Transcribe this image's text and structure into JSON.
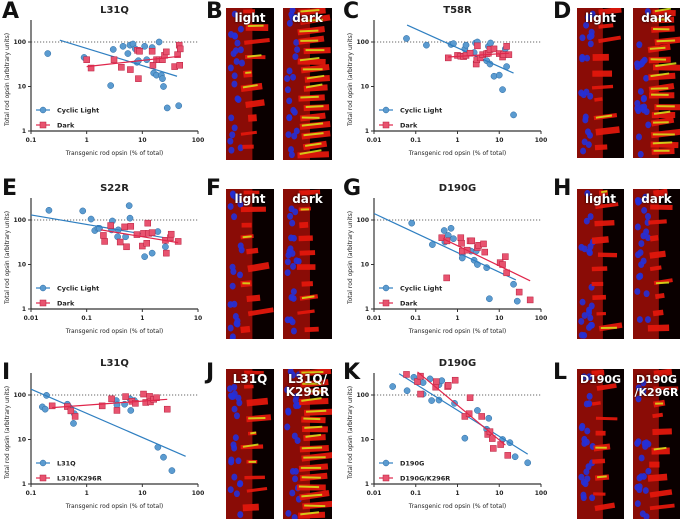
{
  "figure": {
    "panel_letters": [
      "A",
      "B",
      "C",
      "D",
      "E",
      "F",
      "G",
      "H",
      "I",
      "J",
      "K",
      "L"
    ],
    "colors": {
      "series1": "#2f7fc1",
      "series1_marker": "#5b9bd0",
      "series2": "#e0264b",
      "series2_marker": "#e8536f"
    },
    "micrographs": [
      {
        "panel": "B",
        "labels": [
          "light",
          "dark"
        ]
      },
      {
        "panel": "D",
        "labels": [
          "light",
          "dark"
        ]
      },
      {
        "panel": "F",
        "labels": [
          "light",
          "dark"
        ]
      },
      {
        "panel": "H",
        "labels": [
          "light",
          "dark"
        ]
      },
      {
        "panel": "J",
        "labels": [
          "L31Q",
          "L31Q/\nK296R"
        ]
      },
      {
        "panel": "L",
        "labels": [
          "D190G",
          "D190G\n/K296R"
        ]
      }
    ]
  },
  "chart_data": [
    {
      "panel": "A",
      "type": "scatter",
      "title": "L31Q",
      "xlabel": "Transgenic rod opsin (% of total)",
      "ylabel": "Total rod opsin (arbitrary units)",
      "xscale": "log",
      "yscale": "log",
      "xlim": [
        0.1,
        100
      ],
      "ylim": [
        1,
        300
      ],
      "xticks": [
        "0.1",
        "1",
        "10",
        "100"
      ],
      "yticks": [
        "1",
        "10",
        "100"
      ],
      "reference_line": 100,
      "legend": "bottom-left",
      "series": [
        {
          "name": "Cyclic Light",
          "marker": "circle",
          "x": [
            0.2,
            0.9,
            2.7,
            3,
            4.5,
            5.5,
            6,
            6.8,
            7.5,
            8,
            8.5,
            11,
            12,
            15,
            16,
            18,
            20,
            22,
            23,
            24,
            28,
            45
          ],
          "y": [
            55,
            45,
            10.5,
            68,
            80,
            55,
            85,
            90,
            70,
            35,
            38,
            80,
            40,
            75,
            20,
            18,
            100,
            18,
            15,
            10,
            3.3,
            3.7
          ],
          "fit": [
            [
              0.33,
              110
            ],
            [
              42,
              17
            ]
          ]
        },
        {
          "name": "Dark",
          "marker": "square",
          "x": [
            1,
            1.2,
            3.1,
            4.2,
            6.1,
            8.2,
            8.5,
            8.9,
            15,
            15.5,
            18,
            20,
            23,
            25,
            27,
            38,
            43,
            46,
            47,
            48
          ],
          "y": [
            40,
            26,
            40,
            27,
            24,
            65,
            15,
            62,
            62,
            30,
            40,
            40,
            40,
            50,
            60,
            28,
            52,
            85,
            30,
            70
          ],
          "fit": [
            [
              1,
              28
            ],
            [
              48,
              48
            ]
          ]
        }
      ]
    },
    {
      "panel": "C",
      "type": "scatter",
      "title": "T58R",
      "xlabel": "Transgenic rod opsin (% of total)",
      "ylabel": "Total rod opsin (arbitrary units)",
      "xscale": "log",
      "yscale": "log",
      "xlim": [
        0.01,
        100
      ],
      "ylim": [
        1,
        300
      ],
      "xticks": [
        "0.01",
        "0.1",
        "1",
        "10",
        "100"
      ],
      "yticks": [
        "1",
        "10",
        "100"
      ],
      "reference_line": 100,
      "legend": "bottom-left",
      "series": [
        {
          "name": "Cyclic Light",
          "marker": "circle",
          "x": [
            0.06,
            0.18,
            0.7,
            0.8,
            1.5,
            1.6,
            2.5,
            2.7,
            3,
            5,
            5.5,
            6,
            6.2,
            7.5,
            10,
            12,
            14,
            15,
            22
          ],
          "y": [
            120,
            85,
            88,
            92,
            70,
            85,
            58,
            95,
            100,
            38,
            80,
            32,
            95,
            17,
            18,
            8.5,
            70,
            28,
            2.3
          ],
          "fit": [
            [
              0.062,
              240
            ],
            [
              22,
              20
            ]
          ]
        },
        {
          "name": "Dark",
          "marker": "square",
          "x": [
            0.6,
            1,
            1.2,
            1.4,
            1.6,
            2,
            2.8,
            2.9,
            3,
            3.5,
            4,
            5,
            5.5,
            6,
            7.5,
            10,
            12,
            12.5,
            15,
            17
          ],
          "y": [
            44,
            50,
            48,
            47,
            50,
            56,
            32,
            40,
            82,
            44,
            52,
            55,
            56,
            68,
            70,
            55,
            46,
            52,
            80,
            52
          ],
          "fit": [
            [
              0.6,
              46
            ],
            [
              17,
              56
            ]
          ]
        }
      ]
    },
    {
      "panel": "E",
      "type": "scatter",
      "title": "S22R",
      "xlabel": "Transgenic rod opsin (% of total)",
      "ylabel": "Total rod opsin (arbitrary units)",
      "xscale": "log",
      "yscale": "log",
      "xlim": [
        0.01,
        10
      ],
      "ylim": [
        1,
        300
      ],
      "xticks": [
        "0.01",
        "0.1",
        "1",
        "10"
      ],
      "yticks": [
        "1",
        "10",
        "100"
      ],
      "reference_line": 100,
      "legend": "bottom-left",
      "series": [
        {
          "name": "Cyclic Light",
          "marker": "circle",
          "x": [
            0.021,
            0.085,
            0.12,
            0.14,
            0.16,
            0.17,
            0.28,
            0.29,
            0.36,
            0.37,
            0.5,
            0.58,
            0.6,
            1.1,
            1.5,
            1.9,
            2.6
          ],
          "y": [
            165,
            160,
            105,
            58,
            65,
            65,
            60,
            95,
            42,
            60,
            42,
            210,
            110,
            15,
            18,
            55,
            25
          ],
          "fit": [
            [
              0.01,
              130
            ],
            [
              2.5,
              40
            ]
          ]
        },
        {
          "name": "Dark",
          "marker": "square",
          "x": [
            0.2,
            0.21,
            0.27,
            0.4,
            0.48,
            0.52,
            0.62,
            0.8,
            1,
            1.05,
            1.2,
            1.25,
            1.3,
            1.5,
            2.6,
            2.7,
            3.2,
            3.3,
            4.4
          ],
          "y": [
            45,
            33,
            75,
            32,
            70,
            25,
            72,
            47,
            26,
            50,
            30,
            85,
            50,
            52,
            35,
            18,
            40,
            48,
            33
          ],
          "fit": [
            [
              0.18,
              60
            ],
            [
              4.4,
              31
            ]
          ]
        }
      ]
    },
    {
      "panel": "G",
      "type": "scatter",
      "title": "D190G",
      "xlabel": "Transgenic rod opsin (% of total)",
      "ylabel": "Total rod opsin (arbitrary units)",
      "xscale": "log",
      "yscale": "log",
      "xlim": [
        0.01,
        100
      ],
      "ylim": [
        1,
        300
      ],
      "xticks": [
        "0.01",
        "0.1",
        "1",
        "10",
        "100"
      ],
      "yticks": [
        "1",
        "10",
        "100"
      ],
      "reference_line": 100,
      "legend": "bottom-left",
      "series": [
        {
          "name": "Cyclic Light",
          "marker": "circle",
          "x": [
            0.08,
            0.25,
            0.48,
            0.5,
            0.6,
            0.7,
            0.8,
            1.3,
            1.3,
            2.1,
            2.5,
            2.8,
            3,
            5,
            5.8,
            22,
            27
          ],
          "y": [
            85,
            28,
            58,
            32,
            45,
            65,
            38,
            17,
            14,
            20,
            12.5,
            20,
            10,
            8.5,
            1.7,
            3.6,
            1.5
          ],
          "fit": [
            [
              0.01,
              140
            ],
            [
              25,
              4.5
            ]
          ]
        },
        {
          "name": "Dark",
          "marker": "square",
          "x": [
            0.42,
            0.55,
            0.56,
            1.2,
            1.25,
            1.3,
            1.7,
            2,
            2.2,
            3,
            3.2,
            4.2,
            4.5,
            10.5,
            12,
            14,
            15,
            30,
            55
          ],
          "y": [
            40,
            5,
            34,
            40,
            30,
            20,
            21,
            34,
            34,
            24,
            27,
            29,
            19,
            11,
            10,
            15,
            6.5,
            2.4,
            1.6
          ],
          "fit": [
            [
              0.45,
              38
            ],
            [
              55,
              4.3
            ]
          ]
        }
      ]
    },
    {
      "panel": "I",
      "type": "scatter",
      "title": "L31Q",
      "xlabel": "Transgenic rod opsin (% of total)",
      "ylabel": "Total rod opsin (arbitrary units)",
      "xscale": "log",
      "yscale": "log",
      "xlim": [
        0.1,
        100
      ],
      "ylim": [
        1,
        300
      ],
      "xticks": [
        "0.1",
        "1",
        "10",
        "100"
      ],
      "yticks": [
        "1",
        "10",
        "100"
      ],
      "reference_line": 100,
      "legend": "bottom-left",
      "series": [
        {
          "name": "L31Q",
          "marker": "circle",
          "x": [
            0.16,
            0.18,
            0.19,
            0.45,
            0.5,
            0.58,
            0.6,
            3.4,
            3.5,
            4.8,
            6,
            6.2,
            7.2,
            19,
            24,
            34
          ],
          "y": [
            54,
            48,
            98,
            62,
            52,
            23,
            38,
            75,
            60,
            62,
            82,
            45,
            75,
            6.7,
            4,
            2
          ],
          "fit": [
            [
              0.1,
              135
            ],
            [
              60,
              4.2
            ]
          ]
        },
        {
          "name": "L31Q/K296R",
          "marker": "square",
          "x": [
            0.24,
            0.45,
            0.52,
            0.62,
            1.9,
            2.8,
            3.5,
            5,
            6.5,
            7.5,
            10.5,
            11.5,
            13.5,
            14,
            16,
            18,
            28
          ],
          "y": [
            57,
            55,
            44,
            33,
            57,
            82,
            45,
            92,
            72,
            65,
            105,
            68,
            93,
            70,
            80,
            87,
            48
          ],
          "fit": [
            [
              0.24,
              52
            ],
            [
              28,
              80
            ]
          ]
        }
      ]
    },
    {
      "panel": "K",
      "type": "scatter",
      "title": "D190G",
      "xlabel": "Transgenic rod opsin (% of total)",
      "ylabel": "Total rod opsin (arbitrary units)",
      "xscale": "log",
      "yscale": "log",
      "xlim": [
        0.01,
        100
      ],
      "ylim": [
        1,
        300
      ],
      "xticks": [
        "0.01",
        "0.1",
        "1",
        "10",
        "100"
      ],
      "yticks": [
        "1",
        "10",
        "100"
      ],
      "reference_line": 100,
      "legend": "bottom-left",
      "series": [
        {
          "name": "D190G",
          "marker": "circle",
          "x": [
            0.028,
            0.062,
            0.09,
            0.15,
            0.15,
            0.22,
            0.24,
            0.36,
            0.36,
            0.42,
            0.85,
            1.5,
            3,
            5,
            5.6,
            12,
            18,
            24,
            48
          ],
          "y": [
            155,
            125,
            250,
            105,
            190,
            230,
            75,
            170,
            77,
            210,
            65,
            10.7,
            45,
            17,
            30,
            10,
            8.5,
            4.1,
            3
          ],
          "fit": [
            [
              0.04,
              300
            ],
            [
              48,
              4.7
            ]
          ]
        },
        {
          "name": "D190G/K296R",
          "marker": "square",
          "x": [
            0.06,
            0.11,
            0.13,
            0.13,
            0.3,
            0.31,
            0.58,
            0.6,
            0.88,
            1.5,
            1.9,
            2,
            3.8,
            5.3,
            6,
            6.8,
            7.2,
            10.8,
            16
          ],
          "y": [
            290,
            200,
            265,
            105,
            150,
            200,
            155,
            165,
            215,
            33,
            38,
            87,
            33,
            13,
            15,
            10.5,
            6.3,
            7.7,
            4.4
          ],
          "fit": [
            [
              0.11,
              330
            ],
            [
              14,
              7.5
            ]
          ]
        }
      ]
    }
  ]
}
